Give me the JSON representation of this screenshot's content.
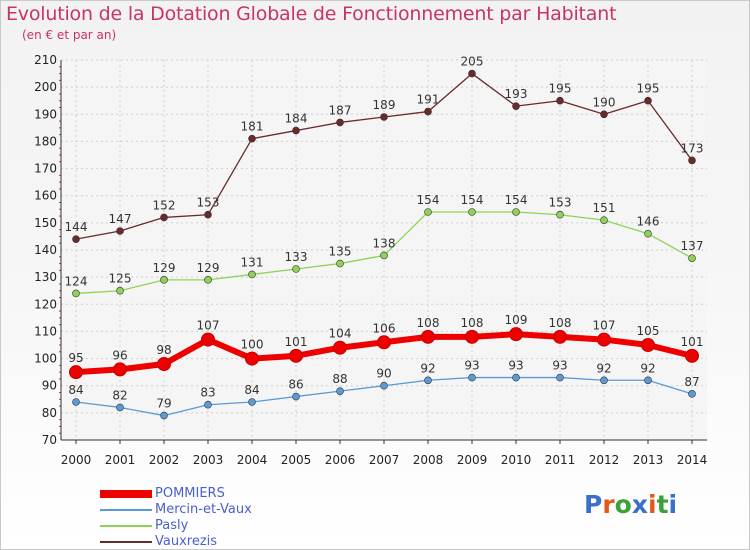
{
  "title": "Evolution de la Dotation Globale de Fonctionnement par Habitant",
  "subtitle": "(en € et par an)",
  "logo": {
    "text": "Proxiti",
    "letters": [
      "P",
      "r",
      "o",
      "x",
      "i",
      "t",
      "i"
    ],
    "colors": [
      "#3b6fc9",
      "#e05a1c",
      "#3aa03a",
      "#3b6fc9",
      "#e05a1c",
      "#3aa03a",
      "#3b6fc9"
    ]
  },
  "chart_data": {
    "type": "line",
    "title": "Evolution de la Dotation Globale de Fonctionnement par Habitant",
    "subtitle": "(en € et par an)",
    "xlabel": "",
    "ylabel": "",
    "ylim": [
      70,
      210
    ],
    "yticks": [
      70,
      80,
      90,
      100,
      110,
      120,
      130,
      140,
      150,
      160,
      170,
      180,
      190,
      200,
      210
    ],
    "grid": true,
    "legend": "bottom-left",
    "categories": [
      "2000",
      "2001",
      "2002",
      "2003",
      "2004",
      "2005",
      "2006",
      "2007",
      "2008",
      "2009",
      "2010",
      "2011",
      "2012",
      "2013",
      "2014"
    ],
    "series": [
      {
        "name": "POMMIERS",
        "color": "#ee0000",
        "values": [
          95,
          96,
          98,
          107,
          100,
          101,
          104,
          106,
          108,
          108,
          109,
          108,
          107,
          105,
          101
        ]
      },
      {
        "name": "Mercin-et-Vaux",
        "color": "#5b9bd5",
        "values": [
          84,
          82,
          79,
          83,
          84,
          86,
          88,
          90,
          92,
          93,
          93,
          93,
          92,
          92,
          87
        ]
      },
      {
        "name": "Pasly",
        "color": "#8ed357",
        "values": [
          124,
          125,
          129,
          129,
          131,
          133,
          135,
          138,
          154,
          154,
          154,
          153,
          151,
          146,
          137
        ]
      },
      {
        "name": "Vauxrezis",
        "color": "#6b2a2a",
        "values": [
          144,
          147,
          152,
          153,
          181,
          184,
          187,
          189,
          191,
          205,
          193,
          195,
          190,
          195,
          173
        ]
      }
    ]
  }
}
